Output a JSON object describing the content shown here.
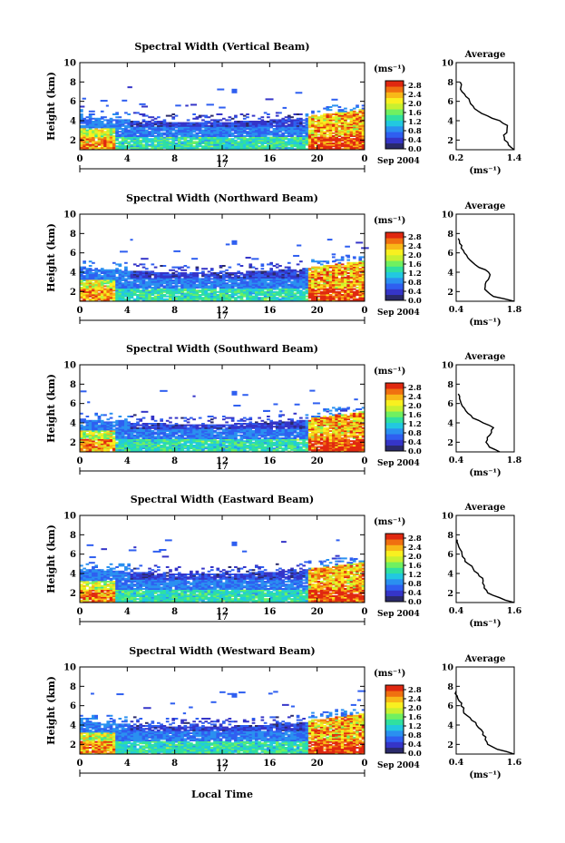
{
  "chart_data": {
    "type": "heatmap",
    "xlabel": "Local Time",
    "date_label": "Sep 2004",
    "day_label": "17",
    "x_ticks": [
      "0",
      "4",
      "8",
      "12",
      "16",
      "20",
      "0"
    ],
    "xlim": [
      0,
      24
    ],
    "ylabel": "Height (km)",
    "y_ticks": [
      "2",
      "4",
      "6",
      "8",
      "10"
    ],
    "ylim": [
      1,
      10
    ],
    "colorbar_label": "(ms⁻¹)",
    "colorbar_ticks": [
      "0.0",
      "0.4",
      "0.8",
      "1.2",
      "1.6",
      "2.0",
      "2.4",
      "2.8"
    ],
    "colorbar_range": [
      0,
      3.0
    ],
    "colormap": [
      "#2a2a6a",
      "#3535c8",
      "#2f5ff0",
      "#2a90f0",
      "#22c8e0",
      "#30e0a0",
      "#70f060",
      "#c8f030",
      "#f8f020",
      "#f8b818",
      "#f07010",
      "#e02810"
    ],
    "avg_title": "Average",
    "avg_xlabel": "(ms⁻¹)",
    "panels": [
      {
        "title": "Spectral Width (Vertical Beam)",
        "avg_xticks": [
          "0.2",
          "1.4"
        ],
        "avg_xlim": [
          0.2,
          1.4
        ],
        "avg_profile": {
          "height": [
            1.0,
            1.5,
            2.0,
            2.5,
            3.0,
            3.5,
            4.0,
            4.5,
            5.0,
            5.5,
            6.0,
            6.5,
            7.0,
            7.5,
            8.0
          ],
          "width": [
            1.4,
            1.28,
            1.2,
            1.18,
            1.25,
            1.26,
            1.1,
            0.85,
            0.65,
            0.55,
            0.48,
            0.4,
            0.32,
            0.3,
            0.28
          ]
        }
      },
      {
        "title": "Spectral Width (Northward Beam)",
        "avg_xticks": [
          "0.4",
          "1.8"
        ],
        "avg_xlim": [
          0.4,
          1.8
        ],
        "avg_profile": {
          "height": [
            1.0,
            1.5,
            2.0,
            2.5,
            3.0,
            3.5,
            4.0,
            4.5,
            5.0,
            5.5,
            6.0,
            6.5,
            7.0,
            7.5
          ],
          "width": [
            1.8,
            1.3,
            1.15,
            1.1,
            1.12,
            1.2,
            1.18,
            0.95,
            0.8,
            0.68,
            0.6,
            0.52,
            0.48,
            0.45
          ]
        }
      },
      {
        "title": "Spectral Width (Southward Beam)",
        "avg_xticks": [
          "0.4",
          "1.8"
        ],
        "avg_xlim": [
          0.4,
          1.8
        ],
        "avg_profile": {
          "height": [
            1.0,
            1.5,
            2.0,
            2.5,
            3.0,
            3.5,
            4.0,
            4.5,
            5.0,
            5.5,
            6.0,
            6.5,
            7.0
          ],
          "width": [
            1.45,
            1.2,
            1.12,
            1.15,
            1.25,
            1.3,
            1.05,
            0.8,
            0.68,
            0.6,
            0.52,
            0.48,
            0.45
          ]
        }
      },
      {
        "title": "Spectral Width (Eastward Beam)",
        "avg_xticks": [
          "0.4",
          "1.6"
        ],
        "avg_xlim": [
          0.4,
          1.6
        ],
        "avg_profile": {
          "height": [
            1.0,
            1.5,
            2.0,
            2.5,
            3.0,
            3.5,
            4.0,
            4.5,
            5.0,
            5.5,
            6.0,
            6.5,
            7.0,
            7.5
          ],
          "width": [
            1.6,
            1.3,
            1.05,
            0.98,
            0.95,
            0.95,
            0.85,
            0.75,
            0.65,
            0.58,
            0.52,
            0.48,
            0.44,
            0.42
          ]
        }
      },
      {
        "title": "Spectral Width (Westward Beam)",
        "avg_xticks": [
          "0.4",
          "1.6"
        ],
        "avg_xlim": [
          0.4,
          1.6
        ],
        "avg_profile": {
          "height": [
            1.0,
            1.5,
            2.0,
            2.5,
            3.0,
            3.5,
            4.0,
            4.5,
            5.0,
            5.5,
            6.0,
            6.5,
            7.0,
            7.5
          ],
          "width": [
            1.6,
            1.25,
            1.05,
            1.0,
            0.95,
            0.92,
            0.82,
            0.72,
            0.62,
            0.55,
            0.5,
            0.46,
            0.42,
            0.4
          ]
        }
      }
    ]
  }
}
